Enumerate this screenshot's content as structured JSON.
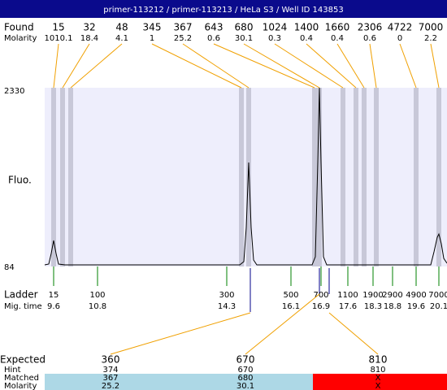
{
  "header": {
    "title": "primer-113212 / primer-113213 / HeLa S3 / Well ID 143853"
  },
  "found": {
    "label": "Found",
    "molarity_label": "Molarity",
    "peaks": [
      {
        "size": "15",
        "molarity": "1010.1"
      },
      {
        "size": "32",
        "molarity": "18.4"
      },
      {
        "size": "48",
        "molarity": "4.1"
      },
      {
        "size": "345",
        "molarity": "1"
      },
      {
        "size": "367",
        "molarity": "25.2"
      },
      {
        "size": "643",
        "molarity": "0.6"
      },
      {
        "size": "680",
        "molarity": "30.1"
      },
      {
        "size": "1024",
        "molarity": "0.3"
      },
      {
        "size": "1400",
        "molarity": "0.4"
      },
      {
        "size": "1660",
        "molarity": "0.4"
      },
      {
        "size": "2306",
        "molarity": "0.6"
      },
      {
        "size": "4722",
        "molarity": "0"
      },
      {
        "size": "7000",
        "molarity": "2.2"
      }
    ]
  },
  "fluo": {
    "label": "Fluo.",
    "max": "2330",
    "min": "84"
  },
  "ladder": {
    "label": "Ladder",
    "time_label": "Mig. time",
    "bands": [
      {
        "size": "15",
        "time": "9.6"
      },
      {
        "size": "100",
        "time": "10.8"
      },
      {
        "size": "300",
        "time": "14.3"
      },
      {
        "size": "500",
        "time": "16.1"
      },
      {
        "size": "700",
        "time": "16.9"
      },
      {
        "size": "1100",
        "time": "17.6"
      },
      {
        "size": "1900",
        "time": "18.3"
      },
      {
        "size": "2900",
        "time": "18.8"
      },
      {
        "size": "4900",
        "time": "19.6"
      },
      {
        "size": "7000",
        "time": "20.1"
      }
    ]
  },
  "expected": {
    "label": "Expected",
    "hint_label": "Hint",
    "matched_label": "Matched",
    "molarity_label": "Molarity",
    "rows": [
      {
        "expected": "360",
        "hint": "374",
        "matched": "367",
        "molarity": "25.2",
        "color": "#add8e6"
      },
      {
        "expected": "670",
        "hint": "670",
        "matched": "680",
        "molarity": "30.1",
        "color": "#add8e6"
      },
      {
        "expected": "810",
        "hint": "810",
        "matched": "X",
        "molarity": "X",
        "color": "#ff0000"
      }
    ]
  }
}
